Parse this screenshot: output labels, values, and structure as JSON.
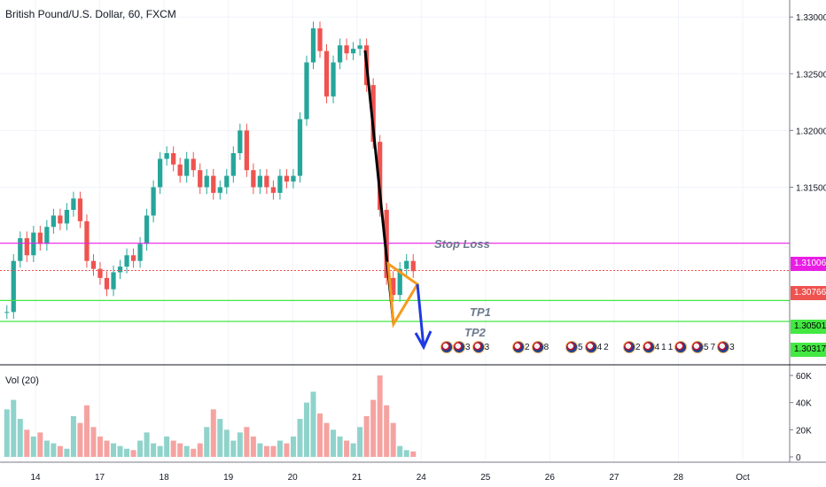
{
  "header": {
    "title": "British Pound/U.S. Dollar, 60, FXCM"
  },
  "volume": {
    "title": "Vol (20)",
    "axis_labels": [
      "60K",
      "40K",
      "20K",
      "0"
    ]
  },
  "annotations": {
    "stop_loss": "Stop Loss",
    "tp1": "TP1",
    "tp2": "TP2"
  },
  "price_tags": {
    "stop_loss": {
      "text": "1.31006",
      "bg": "#e91ee5",
      "fg": "#ffffff"
    },
    "current": {
      "text": "1.30766",
      "bg": "#ef5350",
      "fg": "#ffffff"
    },
    "tp1": {
      "text": "1.30501",
      "bg": "#43e843",
      "fg": "#000000"
    },
    "tp2": {
      "text": "1.30317",
      "bg": "#43e843",
      "fg": "#000000"
    }
  },
  "events": [
    {
      "counts": [
        "3",
        "3"
      ]
    },
    {
      "counts": [
        "2",
        "8"
      ]
    },
    {
      "counts": [
        "5",
        "4",
        "2"
      ]
    },
    {
      "counts": [
        "2",
        "4",
        "1",
        "1"
      ]
    },
    {
      "counts": [
        "5",
        "7",
        "3"
      ]
    }
  ],
  "colors": {
    "up": "#26a69a",
    "down": "#ef5350",
    "vol_up": "#8fd3cb",
    "vol_down": "#f5a3a1",
    "stop": "#e91ee5",
    "target": "#43e843",
    "trend": "#000000",
    "triangle": "#f79a1e",
    "arrow": "#1f3ae0"
  },
  "chart_data": {
    "type": "candlestick",
    "title": "British Pound/U.S. Dollar, 60, FXCM",
    "y_ticks": [
      "1.33000",
      "1.32500",
      "1.32000",
      "1.31500"
    ],
    "x_ticks": [
      "14",
      "17",
      "18",
      "19",
      "20",
      "21",
      "24",
      "25",
      "26",
      "27",
      "28",
      "Oct"
    ],
    "ylim": [
      1.2995,
      1.3315
    ],
    "levels": {
      "stop_loss": 1.31006,
      "current": 1.30766,
      "tp1": 1.30501,
      "tp2": 1.30317
    },
    "price_path": [
      1.304,
      1.3085,
      1.3105,
      1.309,
      1.311,
      1.31,
      1.3115,
      1.3125,
      1.3118,
      1.313,
      1.314,
      1.312,
      1.3085,
      1.3078,
      1.307,
      1.306,
      1.3075,
      1.308,
      1.309,
      1.3085,
      1.31,
      1.3125,
      1.315,
      1.3175,
      1.318,
      1.317,
      1.316,
      1.3175,
      1.3165,
      1.315,
      1.316,
      1.3145,
      1.315,
      1.316,
      1.318,
      1.32,
      1.3165,
      1.315,
      1.316,
      1.315,
      1.3145,
      1.316,
      1.3155,
      1.316,
      1.321,
      1.326,
      1.329,
      1.327,
      1.323,
      1.326,
      1.3275,
      1.3268,
      1.3272,
      1.3275,
      1.324,
      1.319,
      1.313,
      1.307,
      1.3055,
      1.3078,
      1.3085,
      1.3076
    ],
    "volume": [
      35,
      42,
      28,
      20,
      15,
      18,
      12,
      10,
      8,
      6,
      30,
      25,
      38,
      22,
      15,
      12,
      10,
      8,
      6,
      5,
      12,
      18,
      10,
      8,
      15,
      12,
      10,
      8,
      6,
      10,
      22,
      35,
      28,
      20,
      12,
      18,
      22,
      15,
      10,
      8,
      8,
      12,
      10,
      15,
      28,
      40,
      48,
      32,
      25,
      20,
      15,
      12,
      10,
      22,
      30,
      42,
      60,
      38,
      25,
      8,
      5,
      4
    ]
  }
}
